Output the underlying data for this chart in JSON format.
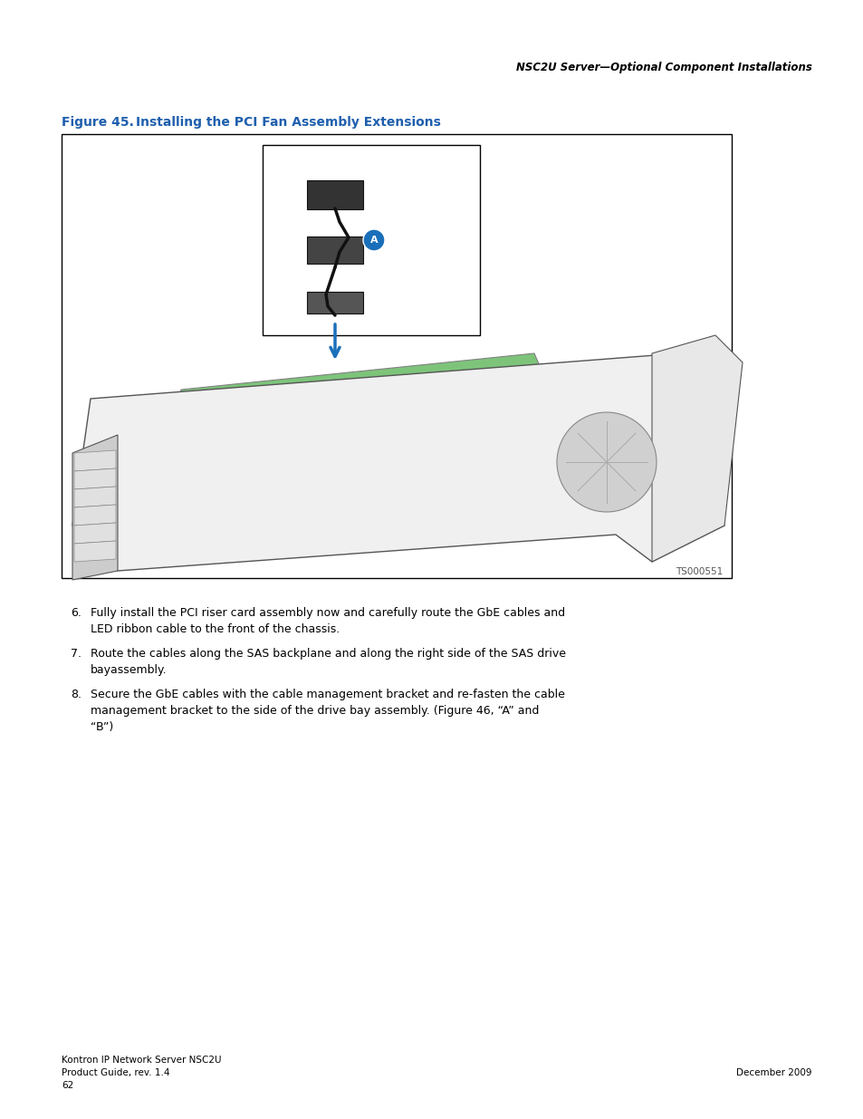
{
  "page_header": "NSC2U Server—Optional Component Installations",
  "figure_label": "Figure 45.",
  "figure_title": "Installing the PCI Fan Assembly Extensions",
  "figure_code": "TS000551",
  "body_text": [
    "6. Fully install the PCI riser card assembly now and carefully route the GbE cables and\n    LED ribbon cable to the front of the chassis.",
    "7. Route the cables along the SAS backplane and along the right side of the SAS drive\n    bayassembly.",
    "8. Secure the GbE cables with the cable management bracket and re-fasten the cable\n    management bracket to the side of the drive bay assembly. (Figure 46, “A” and\n    “B”)"
  ],
  "footer_left_line1": "Kontron IP Network Server NSC2U",
  "footer_left_line2": "Product Guide, rev. 1.4",
  "footer_left_line3": "62",
  "footer_right": "December 2009",
  "header_color": "#000000",
  "figure_title_color": "#1f5fad",
  "body_color": "#000000",
  "footer_color": "#000000",
  "bg_color": "#ffffff",
  "figure_box_color": "#000000",
  "inner_box_color": "#000000",
  "green_fill": "#7dc47a",
  "blue_arrow_color": "#1a6fba",
  "label_circle_color": "#1a6fba"
}
